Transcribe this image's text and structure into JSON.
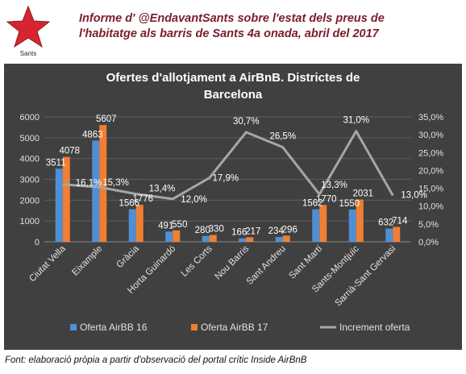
{
  "header": {
    "title_line1": "Informe d' @EndavantSants sobre l'estat dels preus de",
    "title_line2": "l'habitatge als barris de Sants 4a onada, abril del 2017",
    "logo_text": "Sants"
  },
  "footer": {
    "source": "Font: elaboració pròpia a partir d'observació del portal crític Inside AirBnB"
  },
  "chart_data": {
    "type": "bar",
    "title_line1": "Ofertes d'allotjament a AirBnB. Districtes de",
    "title_line2": "Barcelona",
    "categories": [
      "Ciutat Vella",
      "Eixample",
      "Gràcia",
      "Horta Guinardó",
      "Les Corts",
      "Nou Barris",
      "Sant Andreu",
      "Sant Martí",
      "Sants-Montjuïc",
      "Sarrià-Sant Gervasi"
    ],
    "series": [
      {
        "name": "Oferta AirBB 16",
        "kind": "bar",
        "axis": "left",
        "color": "#4f8fd6",
        "values": [
          3511,
          4863,
          1566,
          491,
          280,
          166,
          234,
          1562,
          1550,
          632
        ],
        "labels": [
          "3511",
          "4863",
          "1566",
          "491",
          "280",
          "166",
          "234",
          "1562",
          "1550",
          "632"
        ]
      },
      {
        "name": "Oferta AirBB 17",
        "kind": "bar",
        "axis": "left",
        "color": "#f07f33",
        "values": [
          4078,
          5607,
          1776,
          550,
          330,
          217,
          296,
          1770,
          2031,
          714
        ],
        "labels": [
          "4078",
          "5607",
          "1776",
          "550",
          "330",
          "217",
          "296",
          "1770",
          "2031",
          "714"
        ]
      },
      {
        "name": "Increment oferta",
        "kind": "line",
        "axis": "right",
        "color": "#a6a6a6",
        "values": [
          16.1,
          15.3,
          13.4,
          12.0,
          17.9,
          30.7,
          26.5,
          13.3,
          31.0,
          13.0
        ],
        "labels": [
          "16,1%",
          "15,3%",
          "13,4%",
          "12,0%",
          "17,9%",
          "30,7%",
          "26,5%",
          "13,3%",
          "31,0%",
          "13,0%"
        ]
      }
    ],
    "y_left": {
      "min": 0,
      "max": 6000,
      "ticks": [
        "0",
        "1000",
        "2000",
        "3000",
        "4000",
        "5000",
        "6000"
      ]
    },
    "y_right": {
      "min": 0,
      "max": 35,
      "ticks": [
        "0,0%",
        "5,0%",
        "10,0%",
        "15,0%",
        "20,0%",
        "25,0%",
        "30,0%",
        "35,0%"
      ]
    },
    "grid": true,
    "legend": "bottom",
    "background": "#404040"
  }
}
